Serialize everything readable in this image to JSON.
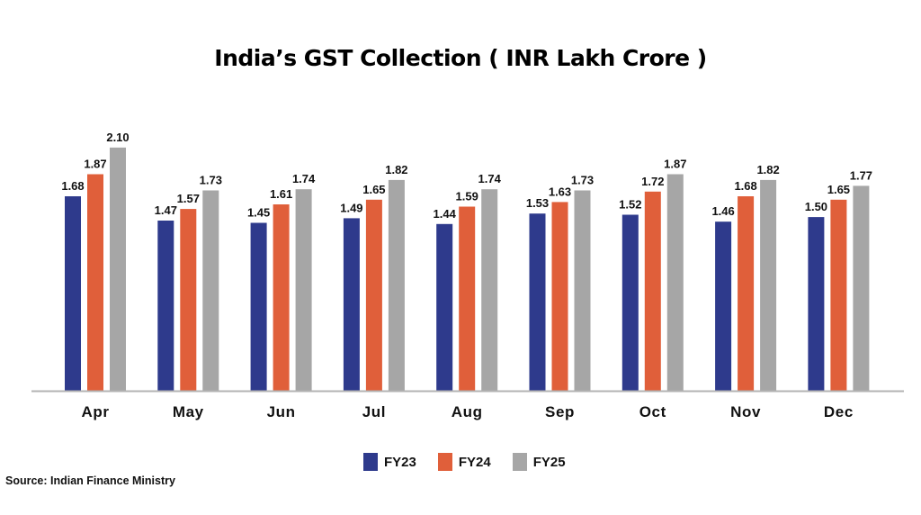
{
  "chart_data": {
    "type": "bar",
    "title": "India’s GST Collection ( INR Lakh Crore )",
    "xlabel": "",
    "ylabel": "",
    "ylim": [
      0,
      2.1
    ],
    "grid": false,
    "legend_position": "bottom-center",
    "categories": [
      "Apr",
      "May",
      "Jun",
      "Jul",
      "Aug",
      "Sep",
      "Oct",
      "Nov",
      "Dec"
    ],
    "series": [
      {
        "name": "FY23",
        "color": "#2e3a8c",
        "values": [
          1.68,
          1.47,
          1.45,
          1.49,
          1.44,
          1.53,
          1.52,
          1.46,
          1.5
        ]
      },
      {
        "name": "FY24",
        "color": "#e05f3a",
        "values": [
          1.87,
          1.57,
          1.61,
          1.65,
          1.59,
          1.63,
          1.72,
          1.68,
          1.65
        ]
      },
      {
        "name": "FY25",
        "color": "#a6a6a6",
        "values": [
          2.1,
          1.73,
          1.74,
          1.82,
          1.74,
          1.73,
          1.87,
          1.82,
          1.77
        ]
      }
    ],
    "source": "Source: Indian Finance Ministry"
  }
}
